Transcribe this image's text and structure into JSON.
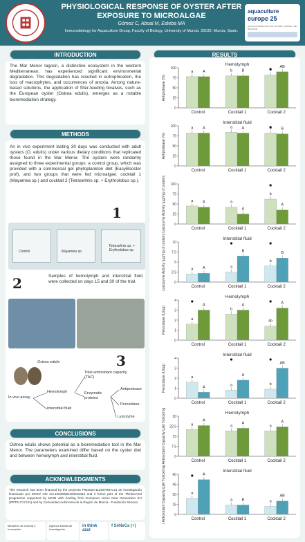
{
  "header": {
    "title": "PHYSIOLOGICAL RESPONSE OF OYSTER AFTER EXPOSURE TO MICROALGAE",
    "authors": "Gómez C, Aboal M, Esteba MA",
    "affiliation": "Immunobiology for Aquaculture Group, Faculty of Biology, University of Murcia, 30100, Murcia, Spain.",
    "left_logo": "Universidad de Murcia",
    "right_logo_line1": "aquaculture",
    "right_logo_line2": "europe 25",
    "right_logo_line3": "AQUACULTURE FOR OUR FUTURE: FINDING THE BALANCE"
  },
  "sections": {
    "introduction": "INTRODUCTION",
    "methods": "METHODS",
    "conclusions": "CONCLUSIONS",
    "acknowledgments": "ACKNOWLEDGMENTS",
    "results": "RESULTS"
  },
  "introduction": "The Mar Menor lagoon, a distinctive ecosystem in the western Mediterranean, has experienced significant environmental degradation. This degradation has resulted in eutrophication, the loss of macrophytes, and occurrences of anoxia. Among nature-based solutions, the application of filter-feeding bivalves, such as the European oyster (Ostrea edulis), emerges as a notable bioremediation strategy.",
  "methods": {
    "text": "An in vivo experiment lasting 30 days was conducted with adult oysters (O. edulis) under various dietary conditions that replicated those found in the Mar Menor. The oysters were randomly assigned to three experimental groups: a control group, which was provided with a commercial gel phytoplankton diet (EasyBooster prof), and two groups that were fed microalgae: cocktail 1 (Mayamea sp.) and cocktail 2 (Tetraselmis sp. + Erythrolobus sp.).",
    "step1": "1",
    "step2": "2",
    "step3": "3",
    "tanks": [
      "Control",
      "Mayamea sp.",
      "Tetraselmis sp. + Erythrolobus sp."
    ],
    "sampling": "Samples of hemolymph and interstitial fluid were collected on days 15 and 30 of the trial.",
    "diagram": {
      "organism": "Ostrea edulis",
      "assay": "In vivo assay",
      "fluids": [
        "Hemolymph",
        "Interstitial fluid"
      ],
      "tac": "Total antioxidant capacity (TAC)",
      "enzymatic": "Enzymatic proteins",
      "proteins": [
        "Antiprotease",
        "Peroxidase",
        "Lysozyme"
      ]
    }
  },
  "conclusions": "Ostrea edulis shows potential as a bioremediation tool in the Mar Menor. The parameters examined differ based on the oyster diet and between hemolymph and interstitial fluid.",
  "acknowledgments": "This research has been financed by the proyecto PID2020-113637RB-C21 de investigación financiado por MCIN/ AEI /10.13039/501100011033 and it forms part of the ThinkInAzul programme supported by MCIN with funding from European Union Next Generation EU (PRTR-C17.I01) and by Comunidad Autónoma de la Región de Murcia - Fundación Séneca.",
  "sponsors": [
    "Ministerio de Ciencia e Innovación",
    "Agencia Estatal de Investigación",
    "in think azul",
    "f SéNeCa (+)"
  ],
  "colors": {
    "teal": "#2d6f7c",
    "green": "#6f9a3a",
    "lightgreen": "#cfe0bf",
    "blue": "#4ea1b7",
    "lightblue": "#cfe7ee"
  },
  "chart_data": [
    {
      "type": "bar",
      "title": "Hemolymph",
      "ylabel": "Antiprotease (%)",
      "ylim": [
        0,
        100
      ],
      "categories": [
        "Control",
        "Cocktail 1",
        "Cocktail 2"
      ],
      "series": [
        {
          "values": [
            78,
            80,
            82
          ]
        },
        {
          "values": [
            78,
            80,
            90
          ]
        }
      ],
      "letters": [
        [
          "a",
          "A"
        ],
        [
          "b",
          "B"
        ],
        [
          "b",
          "AB"
        ]
      ],
      "dots": [
        false,
        false,
        true
      ]
    },
    {
      "type": "bar",
      "title": "Interstitial fluid",
      "ylabel": "Antiprotease (%)",
      "ylim": [
        0,
        100
      ],
      "categories": [
        "Control",
        "Cocktail 1",
        "Cocktail 2"
      ],
      "series": [
        {
          "values": [
            82,
            84,
            82
          ]
        },
        {
          "values": [
            82,
            82,
            80
          ]
        }
      ],
      "letters": [
        [
          "a",
          "A"
        ],
        [
          "a",
          "A"
        ],
        [
          "b",
          "B"
        ]
      ],
      "dots": [
        false,
        false,
        true
      ]
    },
    {
      "type": "bar",
      "title": "",
      "ylabel": "Lysozyme Activity (µg/mg of protein)",
      "ylim": [
        0,
        100
      ],
      "categories": [
        "Control",
        "Cocktail 1",
        "Cocktail 2"
      ],
      "series": [
        {
          "values": [
            45,
            42,
            62
          ]
        },
        {
          "values": [
            42,
            25,
            35
          ]
        }
      ],
      "letters": [
        [
          "a",
          "A"
        ],
        [
          "a",
          "A"
        ],
        [
          "b",
          "A"
        ]
      ],
      "dots": [
        false,
        false,
        true
      ]
    },
    {
      "type": "bar",
      "title": "Interstitial fluid",
      "ylabel": "Lysozyme Activity (µg/mg of protein)",
      "ylim": [
        0,
        10
      ],
      "categories": [
        "Control",
        "Cocktail 1",
        "Cocktail 2"
      ],
      "series": [
        {
          "values": [
            2,
            2.5,
            4
          ]
        },
        {
          "values": [
            2.2,
            6.5,
            6
          ]
        }
      ],
      "letters": [
        [
          "a",
          "A"
        ],
        [
          "a",
          "B"
        ],
        [
          "b",
          "B"
        ]
      ],
      "dots": [
        false,
        true,
        true
      ]
    },
    {
      "type": "bar",
      "title": "Hemolymph",
      "ylabel": "Peroxidase (U/µg)",
      "ylim": [
        0,
        4
      ],
      "categories": [
        "Control",
        "Cocktail 1",
        "Cocktail 2"
      ],
      "series": [
        {
          "values": [
            1.6,
            2.6,
            1.4
          ]
        },
        {
          "values": [
            3.0,
            3.0,
            3.2
          ]
        }
      ],
      "letters": [
        [
          "a",
          "A"
        ],
        [
          "b",
          "A"
        ],
        [
          "ab",
          "A"
        ]
      ],
      "dots": [
        true,
        false,
        true
      ]
    },
    {
      "type": "bar",
      "title": "Interstitial fluid",
      "ylabel": "Peroxidase (U/µg)",
      "ylim": [
        0,
        4
      ],
      "categories": [
        "Control",
        "Cocktail 1",
        "Cocktail 2"
      ],
      "series": [
        {
          "values": [
            1.6,
            0.8,
            0.9
          ]
        },
        {
          "values": [
            0.6,
            1.8,
            3.0
          ]
        }
      ],
      "letters": [
        [
          "a",
          "A"
        ],
        [
          "a",
          "A"
        ],
        [
          "b",
          "AB"
        ]
      ],
      "dots": [
        false,
        true,
        true
      ]
    },
    {
      "type": "bar",
      "title": "Hemolymph",
      "ylabel": "Relative Antioxidant Capacity (µM Trolox/mg protein)",
      "ylim": [
        0,
        30
      ],
      "categories": [
        "Control",
        "Cocktail 1",
        "Cocktail 2"
      ],
      "series": [
        {
          "values": [
            20,
            19,
            19
          ]
        },
        {
          "values": [
            23,
            21,
            22
          ]
        }
      ],
      "letters": [
        [
          "a",
          "A"
        ],
        [
          "a",
          "A"
        ],
        [
          "a",
          "A"
        ]
      ],
      "dots": [
        false,
        false,
        false
      ]
    },
    {
      "type": "bar",
      "title": "Interstitial fluid",
      "ylabel": "Relative Antioxidant Capacity (µM Trolox/mg protein)",
      "ylim": [
        0,
        60
      ],
      "categories": [
        "Control",
        "Cocktail 1",
        "Cocktail 2"
      ],
      "series": [
        {
          "values": [
            24,
            14,
            12
          ]
        },
        {
          "values": [
            52,
            14,
            20
          ]
        }
      ],
      "letters": [
        [
          "a",
          "A"
        ],
        [
          "a",
          "B"
        ],
        [
          "a",
          "AB"
        ]
      ],
      "dots": [
        true,
        false,
        false
      ]
    }
  ]
}
